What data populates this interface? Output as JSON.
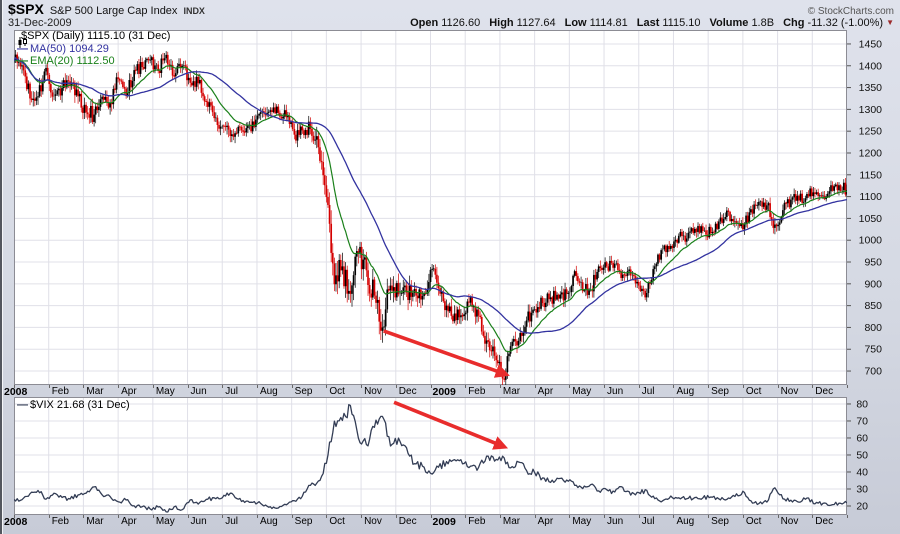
{
  "header": {
    "symbol": "$SPX",
    "name": "S&P 500 Large Cap Index",
    "exchange": "INDX",
    "date": "31-Dec-2009",
    "copyright": "© StockCharts.com",
    "quote": [
      {
        "label": "Open",
        "value": "1126.60"
      },
      {
        "label": "High",
        "value": "1127.64"
      },
      {
        "label": "Low",
        "value": "1114.81"
      },
      {
        "label": "Last",
        "value": "1115.10"
      },
      {
        "label": "Volume",
        "value": "1.8B"
      }
    ],
    "chg_label": "Chg",
    "chg_value": "-11.32 (-1.00%)",
    "chg_direction": "down"
  },
  "x_axis": {
    "months": [
      "2008",
      "Feb",
      "Mar",
      "Apr",
      "May",
      "Jun",
      "Jul",
      "Aug",
      "Sep",
      "Oct",
      "Nov",
      "Dec",
      "2009",
      "Feb",
      "Mar",
      "Apr",
      "May",
      "Jun",
      "Jul",
      "Aug",
      "Sep",
      "Oct",
      "Nov",
      "Dec"
    ]
  },
  "colors": {
    "up": "#000000",
    "down": "#d40000",
    "ma50": "#3333a0",
    "ema20": "#1a801a",
    "vix_line": "#333d55",
    "arrow": "#e82c2c",
    "grid": "#e0e0e8",
    "plot_border": "#8c8c94",
    "plot_bg": "#ffffff",
    "tick": "#555555"
  },
  "chart_data": [
    {
      "id": "spx",
      "type": "candlestick",
      "title": "$SPX (Daily)",
      "legend": {
        "series": "$SPX (Daily) 1115.10 (31 Dec)",
        "ma": "MA(50) 1094.29",
        "ema": "EMA(20) 1112.50"
      },
      "interval": "weekly samples read from chart, Jan 2008 - Dec 2009",
      "ylim": [
        668,
        1482
      ],
      "yticks": [
        700,
        750,
        800,
        850,
        900,
        950,
        1000,
        1050,
        1100,
        1150,
        1200,
        1250,
        1300,
        1350,
        1400,
        1450
      ],
      "closes": [
        1411,
        1401,
        1325,
        1330,
        1395,
        1331,
        1349,
        1353,
        1330,
        1293,
        1288,
        1329,
        1315,
        1370,
        1332,
        1390,
        1397,
        1413,
        1388,
        1425,
        1376,
        1400,
        1361,
        1360,
        1318,
        1280,
        1262,
        1239,
        1260,
        1257,
        1260,
        1296,
        1298,
        1292,
        1282,
        1242,
        1252,
        1255,
        1213,
        1099,
        899,
        940,
        877,
        969,
        931,
        873,
        800,
        896,
        876,
        880,
        888,
        872,
        932,
        890,
        850,
        832,
        826,
        869,
        827,
        770,
        735,
        683,
        757,
        769,
        816,
        842,
        856,
        869,
        866,
        877,
        929,
        883,
        887,
        940,
        940,
        946,
        921,
        919,
        896,
        879,
        940,
        979,
        987,
        1010,
        1004,
        1026,
        1021,
        1016,
        1043,
        1068,
        1044,
        1025,
        1071,
        1088,
        1080,
        1036,
        1069,
        1093,
        1091,
        1106,
        1106,
        1102,
        1126,
        1126,
        1115.1
      ],
      "overlays": [
        {
          "name": "MA(50)",
          "type": "sma",
          "window": 50,
          "last": 1094.29
        },
        {
          "name": "EMA(20)",
          "type": "ema",
          "window": 20,
          "last": 1112.5
        }
      ],
      "annotation_arrow": {
        "from": {
          "month": 10.65,
          "value": 792
        },
        "to": {
          "month": 14.15,
          "value": 693
        }
      }
    },
    {
      "id": "vix",
      "type": "line",
      "title": "$VIX",
      "legend_label": "$VIX 21.68 (31 Dec)",
      "interval": "weekly samples read from chart, Jan 2008 - Dec 2009",
      "ylim": [
        14.7,
        84.1
      ],
      "yticks": [
        20,
        30,
        40,
        50,
        60,
        70,
        80
      ],
      "closes": [
        23.9,
        23.7,
        27.2,
        29.1,
        24.0,
        27.5,
        25.0,
        24.1,
        26.5,
        27.5,
        31.2,
        26.6,
        25.6,
        22.5,
        23.5,
        20.1,
        19.6,
        18.2,
        19.4,
        16.5,
        19.6,
        17.8,
        23.6,
        21.1,
        23.9,
        24.8,
        24.8,
        27.5,
        24.0,
        22.9,
        22.6,
        20.7,
        19.6,
        18.8,
        20.7,
        23.1,
        25.7,
        32.1,
        34.7,
        45.1,
        69.9,
        70.3,
        79.1,
        59.9,
        56.1,
        66.3,
        72.7,
        55.3,
        59.9,
        54.3,
        44.9,
        43.4,
        39.2,
        42.8,
        46.1,
        47.3,
        44.8,
        43.4,
        42.7,
        49.3,
        46.4,
        49.3,
        42.4,
        45.9,
        40.8,
        39.7,
        36.5,
        33.9,
        36.1,
        35.3,
        32.1,
        30.2,
        32.6,
        28.9,
        29.6,
        28.2,
        31.0,
        26.4,
        27.9,
        29.2,
        24.3,
        23.1,
        25.9,
        24.8,
        24.3,
        25.0,
        24.7,
        25.3,
        24.2,
        23.9,
        25.6,
        28.7,
        23.1,
        21.4,
        22.3,
        30.7,
        24.2,
        23.4,
        22.2,
        24.7,
        21.3,
        21.6,
        20.5,
        21.7,
        21.68
      ],
      "annotation_arrow": {
        "from": {
          "month": 10.95,
          "value": 81
        },
        "to": {
          "month": 14.1,
          "value": 55
        }
      }
    }
  ]
}
